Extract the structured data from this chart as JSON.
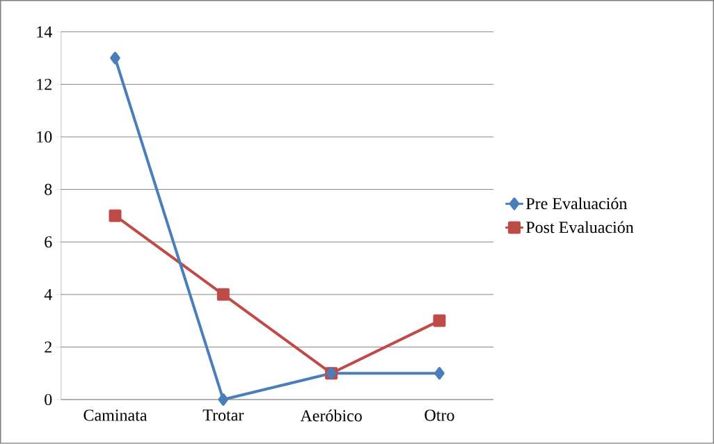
{
  "chart_data": {
    "type": "line",
    "categories": [
      "Caminata",
      "Trotar",
      "Aeróbico",
      "Otro"
    ],
    "series": [
      {
        "name": "Pre Evaluación",
        "color": "#4a7ebb",
        "marker": "diamond",
        "values": [
          13,
          0,
          1,
          1
        ]
      },
      {
        "name": "Post Evaluación",
        "color": "#be4b48",
        "marker": "square",
        "values": [
          7,
          4,
          1,
          3
        ]
      }
    ],
    "ylim": [
      0,
      14
    ],
    "yticks": [
      0,
      2,
      4,
      6,
      8,
      10,
      12,
      14
    ],
    "grid": "y",
    "legend": "right",
    "line_style": "solid"
  }
}
